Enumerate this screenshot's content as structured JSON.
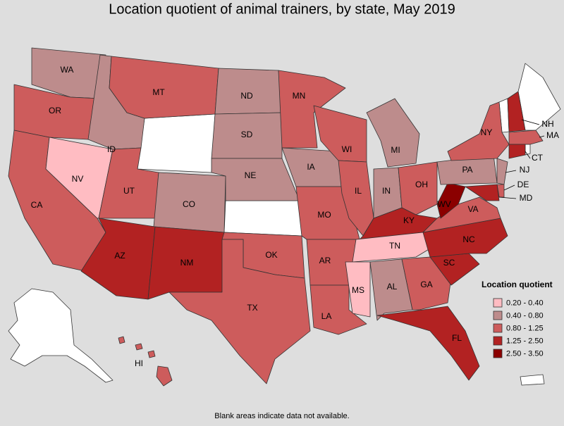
{
  "title": "Location quotient of animal trainers, by state, May 2019",
  "footnote": "Blank areas indicate data not available.",
  "legend": {
    "title": "Location quotient",
    "items": [
      {
        "label": "0.20 - 0.40",
        "color": "#ffbcc2"
      },
      {
        "label": "0.40 - 0.80",
        "color": "#bd8c8c"
      },
      {
        "label": "0.80 - 1.25",
        "color": "#cd5c5c"
      },
      {
        "label": "1.25 - 2.50",
        "color": "#b22222"
      },
      {
        "label": "2.50 - 3.50",
        "color": "#8b0000"
      }
    ]
  },
  "states": [
    {
      "label": "WA",
      "color": "#bd8c8c"
    },
    {
      "label": "OR",
      "color": "#cd5c5c"
    },
    {
      "label": "CA",
      "color": "#cd5c5c"
    },
    {
      "label": "NV",
      "color": "#ffbcc2"
    },
    {
      "label": "ID",
      "color": "#bd8c8c"
    },
    {
      "label": "MT",
      "color": "#cd5c5c"
    },
    {
      "label": "UT",
      "color": "#cd5c5c"
    },
    {
      "label": "CO",
      "color": "#bd8c8c"
    },
    {
      "label": "AZ",
      "color": "#b22222"
    },
    {
      "label": "NM",
      "color": "#b22222"
    },
    {
      "label": "ND",
      "color": "#bd8c8c"
    },
    {
      "label": "SD",
      "color": "#bd8c8c"
    },
    {
      "label": "NE",
      "color": "#bd8c8c"
    },
    {
      "label": "OK",
      "color": "#cd5c5c"
    },
    {
      "label": "TX",
      "color": "#cd5c5c"
    },
    {
      "label": "MN",
      "color": "#cd5c5c"
    },
    {
      "label": "IA",
      "color": "#bd8c8c"
    },
    {
      "label": "MO",
      "color": "#cd5c5c"
    },
    {
      "label": "AR",
      "color": "#cd5c5c"
    },
    {
      "label": "LA",
      "color": "#cd5c5c"
    },
    {
      "label": "WI",
      "color": "#cd5c5c"
    },
    {
      "label": "IL",
      "color": "#cd5c5c"
    },
    {
      "label": "MI",
      "color": "#bd8c8c"
    },
    {
      "label": "IN",
      "color": "#bd8c8c"
    },
    {
      "label": "OH",
      "color": "#cd5c5c"
    },
    {
      "label": "KY",
      "color": "#b22222"
    },
    {
      "label": "TN",
      "color": "#ffbcc2"
    },
    {
      "label": "MS",
      "color": "#ffbcc2"
    },
    {
      "label": "AL",
      "color": "#bd8c8c"
    },
    {
      "label": "GA",
      "color": "#cd5c5c"
    },
    {
      "label": "FL",
      "color": "#b22222"
    },
    {
      "label": "SC",
      "color": "#b22222"
    },
    {
      "label": "NC",
      "color": "#b22222"
    },
    {
      "label": "VA",
      "color": "#cd5c5c"
    },
    {
      "label": "WV",
      "color": "#8b0000"
    },
    {
      "label": "PA",
      "color": "#bd8c8c"
    },
    {
      "label": "NY",
      "color": "#cd5c5c"
    },
    {
      "label": "NJ",
      "color": "#bd8c8c"
    },
    {
      "label": "DE",
      "color": "#cd5c5c"
    },
    {
      "label": "MD",
      "color": "#b22222"
    },
    {
      "label": "NH",
      "color": "#b22222"
    },
    {
      "label": "MA",
      "color": "#cd5c5c"
    },
    {
      "label": "CT",
      "color": "#b22222"
    },
    {
      "label": "HI",
      "color": "#cd5c5c"
    }
  ]
}
